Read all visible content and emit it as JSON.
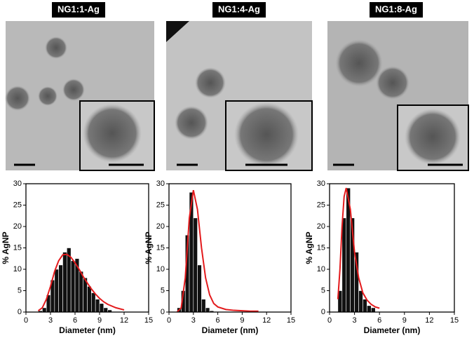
{
  "chart_data": [
    {
      "type": "histogram",
      "title": "NG1:1-Ag",
      "xlabel": "Diameter (nm)",
      "ylabel": "% AgNP",
      "bins": [
        1.5,
        2,
        2.5,
        3,
        3.5,
        4,
        4.5,
        5,
        5.5,
        6,
        6.5,
        7,
        7.5,
        8,
        8.5,
        9,
        9.5,
        10,
        10.5
      ],
      "values": [
        0.3,
        1,
        4,
        7.5,
        10,
        11,
        14,
        15,
        12,
        12.5,
        9.5,
        8,
        6,
        4.5,
        3,
        2,
        1,
        0.5
      ],
      "color": "#111111",
      "fit": {
        "color": "#e31a1c",
        "x": [
          1.5,
          2,
          2.5,
          3,
          3.5,
          4,
          4.5,
          5,
          5.5,
          6,
          6.5,
          7,
          7.5,
          8,
          8.5,
          9,
          9.5,
          10,
          11,
          12
        ],
        "values": [
          0.3,
          1,
          3,
          6,
          9.5,
          12,
          13.4,
          13.5,
          12.8,
          11.5,
          10,
          8.3,
          6.8,
          5.4,
          4.2,
          3.2,
          2.4,
          1.8,
          1,
          0.5
        ]
      },
      "xlim": [
        0,
        15
      ],
      "xticks": [
        0,
        3,
        6,
        9,
        12,
        15
      ],
      "ylim": [
        0,
        30
      ],
      "yticks": [
        0,
        5,
        10,
        15,
        20,
        25,
        30
      ]
    },
    {
      "type": "histogram",
      "title": "NG1:4-Ag",
      "xlabel": "Diameter (nm)",
      "ylabel": "% AgNP",
      "bins": [
        1,
        1.5,
        2,
        2.5,
        3,
        3.5,
        4,
        4.5,
        5,
        5.5
      ],
      "values": [
        1,
        5,
        18,
        28,
        22,
        11,
        3,
        1,
        0.3
      ],
      "color": "#111111",
      "fit": {
        "color": "#e31a1c",
        "x": [
          1,
          1.5,
          2,
          2.5,
          3,
          3.5,
          4,
          4.5,
          5,
          5.5,
          6,
          7,
          8,
          9,
          10,
          11
        ],
        "values": [
          0,
          1,
          8,
          22,
          28.5,
          24,
          15,
          8,
          4,
          2,
          1.2,
          0.6,
          0.4,
          0.3,
          0.2,
          0.2
        ]
      },
      "xlim": [
        0,
        15
      ],
      "xticks": [
        0,
        3,
        6,
        9,
        12,
        15
      ],
      "ylim": [
        0,
        30
      ],
      "yticks": [
        0,
        5,
        10,
        15,
        20,
        25,
        30
      ]
    },
    {
      "type": "histogram",
      "title": "NG1:8-Ag",
      "xlabel": "Diameter (nm)",
      "ylabel": "% AgNP",
      "bins": [
        1,
        1.5,
        2,
        2.5,
        3,
        3.5,
        4,
        4.5,
        5,
        5.5
      ],
      "values": [
        5,
        22,
        29,
        22,
        14,
        5,
        3,
        1.5,
        1
      ],
      "color": "#111111",
      "fit": {
        "color": "#e31a1c",
        "x": [
          1,
          1.25,
          1.5,
          1.75,
          2,
          2.5,
          3,
          3.5,
          4,
          4.5,
          5,
          5.5,
          6
        ],
        "values": [
          3,
          10,
          20,
          27,
          29,
          24,
          14,
          8,
          4.5,
          2.8,
          1.8,
          1.2,
          0.9
        ]
      },
      "xlim": [
        0,
        15
      ],
      "xticks": [
        0,
        3,
        6,
        9,
        12,
        15
      ],
      "ylim": [
        0,
        30
      ],
      "yticks": [
        0,
        5,
        10,
        15,
        20,
        25,
        30
      ]
    }
  ]
}
